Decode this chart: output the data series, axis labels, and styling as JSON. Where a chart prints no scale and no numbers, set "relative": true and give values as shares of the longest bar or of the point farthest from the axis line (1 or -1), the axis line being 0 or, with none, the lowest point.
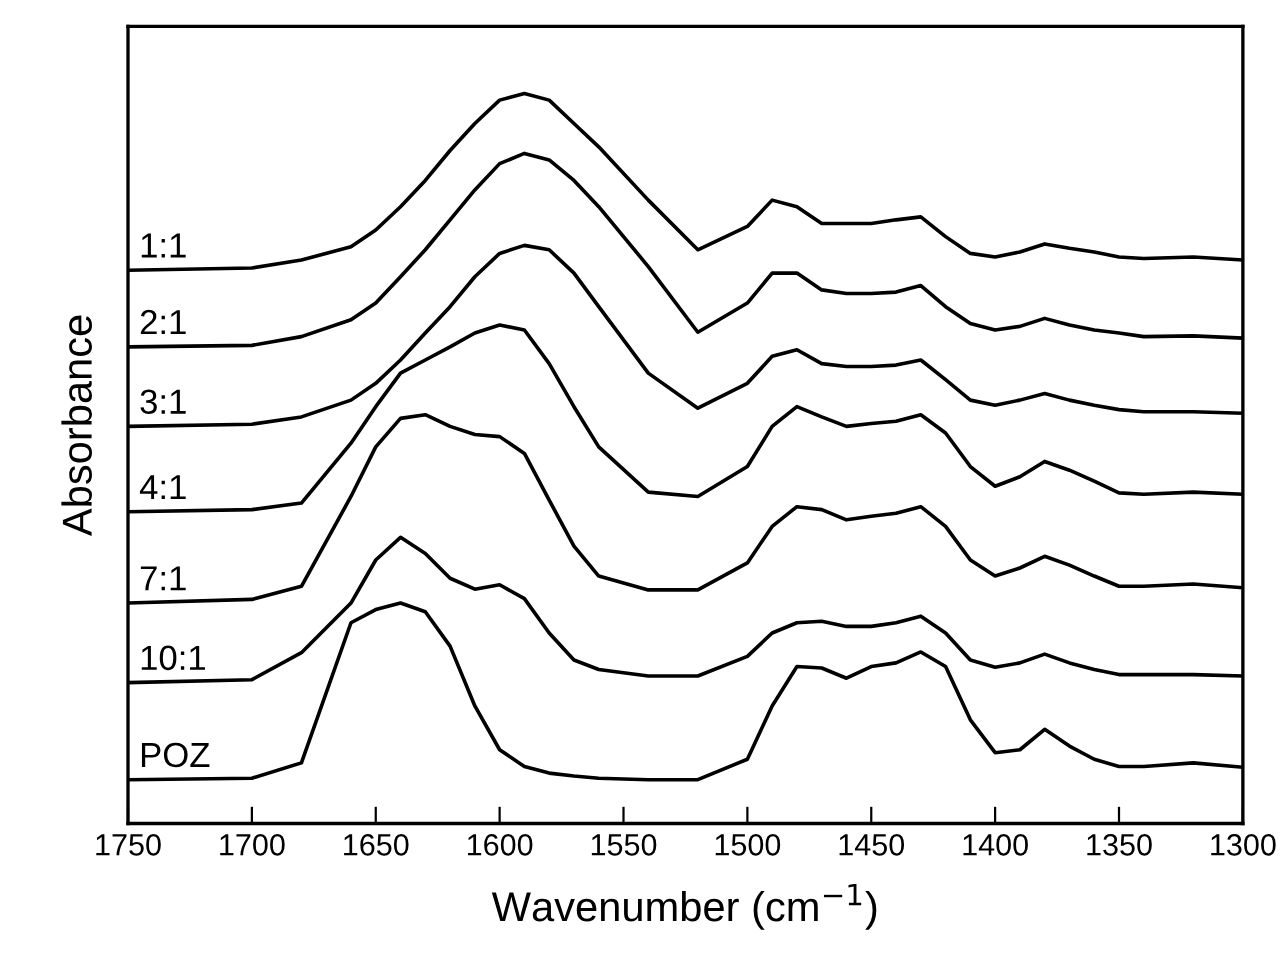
{
  "chart_data": {
    "type": "line",
    "relative": true,
    "xlabel": "Wavenumber (cm$^{−1}$)",
    "ylabel": "Absorbance",
    "xlim": [
      1750,
      1300
    ],
    "xticks": [
      1750,
      1700,
      1650,
      1600,
      1550,
      1500,
      1450,
      1400,
      1350,
      1300
    ],
    "tick_labels": "x",
    "grid": false,
    "legend": false,
    "marker": "none",
    "line_style": "solid",
    "x": [
      1750,
      1700,
      1680,
      1660,
      1650,
      1640,
      1630,
      1620,
      1610,
      1600,
      1590,
      1580,
      1570,
      1560,
      1540,
      1520,
      1500,
      1490,
      1480,
      1470,
      1460,
      1450,
      1440,
      1430,
      1420,
      1410,
      1400,
      1390,
      1380,
      1370,
      1360,
      1350,
      1340,
      1320,
      1300
    ],
    "series": [
      {
        "name": "1:1",
        "color": "#000000",
        "values": [
          0.758,
          0.761,
          0.772,
          0.79,
          0.813,
          0.845,
          0.881,
          0.922,
          0.959,
          0.991,
          1.0,
          0.991,
          0.959,
          0.927,
          0.854,
          0.786,
          0.818,
          0.854,
          0.845,
          0.822,
          0.822,
          0.822,
          0.827,
          0.831,
          0.804,
          0.781,
          0.776,
          0.783,
          0.794,
          0.788,
          0.783,
          0.776,
          0.774,
          0.776,
          0.772
        ]
      },
      {
        "name": "2:1",
        "color": "#000000",
        "values": [
          0.653,
          0.655,
          0.667,
          0.69,
          0.713,
          0.749,
          0.786,
          0.827,
          0.868,
          0.904,
          0.918,
          0.909,
          0.881,
          0.845,
          0.763,
          0.673,
          0.713,
          0.754,
          0.754,
          0.731,
          0.726,
          0.726,
          0.728,
          0.737,
          0.708,
          0.685,
          0.676,
          0.681,
          0.692,
          0.683,
          0.676,
          0.672,
          0.667,
          0.668,
          0.665
        ]
      },
      {
        "name": "3:1",
        "color": "#000000",
        "values": [
          0.544,
          0.547,
          0.557,
          0.58,
          0.603,
          0.635,
          0.672,
          0.708,
          0.749,
          0.781,
          0.792,
          0.786,
          0.754,
          0.708,
          0.617,
          0.569,
          0.603,
          0.64,
          0.649,
          0.63,
          0.626,
          0.626,
          0.628,
          0.635,
          0.608,
          0.58,
          0.573,
          0.58,
          0.589,
          0.58,
          0.573,
          0.567,
          0.564,
          0.564,
          0.562
        ]
      },
      {
        "name": "4:1",
        "color": "#000000",
        "values": [
          0.427,
          0.43,
          0.439,
          0.521,
          0.571,
          0.617,
          0.635,
          0.653,
          0.672,
          0.683,
          0.676,
          0.63,
          0.571,
          0.516,
          0.454,
          0.448,
          0.489,
          0.544,
          0.571,
          0.557,
          0.544,
          0.548,
          0.551,
          0.56,
          0.535,
          0.489,
          0.462,
          0.475,
          0.496,
          0.484,
          0.469,
          0.453,
          0.451,
          0.454,
          0.451
        ]
      },
      {
        "name": "7:1",
        "color": "#000000",
        "values": [
          0.302,
          0.307,
          0.325,
          0.448,
          0.516,
          0.555,
          0.56,
          0.544,
          0.533,
          0.53,
          0.507,
          0.443,
          0.38,
          0.339,
          0.32,
          0.32,
          0.357,
          0.407,
          0.434,
          0.43,
          0.416,
          0.421,
          0.425,
          0.434,
          0.407,
          0.361,
          0.339,
          0.35,
          0.366,
          0.354,
          0.339,
          0.325,
          0.325,
          0.328,
          0.323
        ]
      },
      {
        "name": "10:1",
        "color": "#000000",
        "values": [
          0.193,
          0.197,
          0.234,
          0.302,
          0.361,
          0.392,
          0.37,
          0.336,
          0.321,
          0.327,
          0.308,
          0.261,
          0.224,
          0.211,
          0.202,
          0.202,
          0.229,
          0.261,
          0.275,
          0.277,
          0.27,
          0.27,
          0.275,
          0.284,
          0.261,
          0.224,
          0.214,
          0.22,
          0.232,
          0.22,
          0.211,
          0.204,
          0.204,
          0.204,
          0.202
        ]
      },
      {
        "name": "POZ",
        "color": "#000000",
        "values": [
          0.06,
          0.062,
          0.083,
          0.275,
          0.293,
          0.302,
          0.29,
          0.243,
          0.161,
          0.101,
          0.078,
          0.069,
          0.065,
          0.062,
          0.06,
          0.06,
          0.088,
          0.161,
          0.215,
          0.213,
          0.199,
          0.215,
          0.22,
          0.235,
          0.215,
          0.142,
          0.097,
          0.101,
          0.129,
          0.106,
          0.088,
          0.078,
          0.078,
          0.083,
          0.077
        ]
      }
    ]
  }
}
